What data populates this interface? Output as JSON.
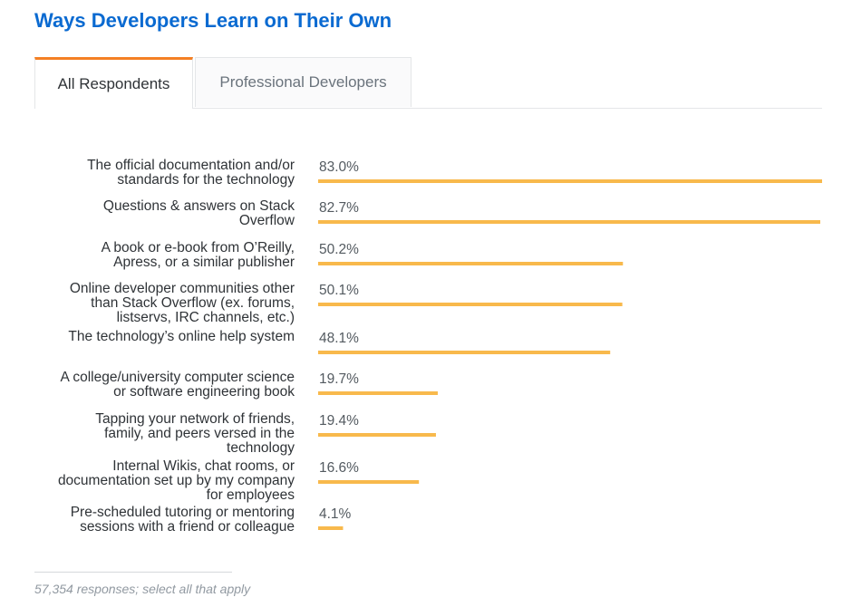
{
  "title": "Ways Developers Learn on Their Own",
  "tabs": [
    {
      "label": "All Respondents",
      "active": true
    },
    {
      "label": "Professional Developers",
      "active": false
    }
  ],
  "colors": {
    "bar": "#f8b94c",
    "title": "#0a6ad1",
    "tab_accent": "#f48024",
    "label_text": "#2f3337",
    "value_text": "#535a60"
  },
  "footnote": "57,354 responses; select all that apply",
  "chart_data": {
    "type": "bar",
    "orientation": "horizontal",
    "categories": [
      [
        "The official documentation and/or",
        "standards for the technology"
      ],
      [
        "Questions & answers on Stack",
        "Overflow"
      ],
      [
        "A book or e-book from O’Reilly,",
        "Apress, or a similar publisher"
      ],
      [
        "Online developer communities other",
        "than Stack Overflow (ex. forums,",
        "listservs, IRC channels, etc.)"
      ],
      [
        "The technology’s online help system"
      ],
      [
        "A college/university computer science",
        "or software engineering book"
      ],
      [
        "Tapping your network of friends,",
        "family, and peers versed in the",
        "technology"
      ],
      [
        "Internal Wikis, chat rooms, or",
        "documentation set up by my company",
        "for employees"
      ],
      [
        "Pre-scheduled tutoring or mentoring",
        "sessions with a friend or colleague"
      ]
    ],
    "values": [
      83.0,
      82.7,
      50.2,
      50.1,
      48.1,
      19.7,
      19.4,
      16.6,
      4.1
    ],
    "value_labels": [
      "83.0%",
      "82.7%",
      "50.2%",
      "50.1%",
      "48.1%",
      "19.7%",
      "19.4%",
      "16.6%",
      "4.1%"
    ],
    "unit": "%",
    "xlim": [
      0,
      83.0
    ],
    "grid": false,
    "legend": "none"
  }
}
